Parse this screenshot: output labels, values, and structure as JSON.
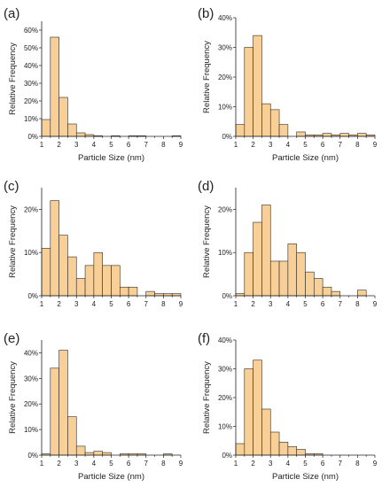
{
  "chart_data": [
    {
      "type": "bar",
      "panel_label": "(a)",
      "xlabel": "Particle Size (nm)",
      "ylabel": "Relative Frequency",
      "xlim": [
        1,
        9
      ],
      "ylim": [
        0,
        65
      ],
      "xticks": [
        "1",
        "2",
        "3",
        "4",
        "5",
        "6",
        "7",
        "8",
        "9"
      ],
      "yticks": [
        "0%",
        "10%",
        "20%",
        "30%",
        "40%",
        "50%",
        "60%"
      ],
      "bin_width": 0.5,
      "x": [
        1.0,
        1.5,
        2.0,
        2.5,
        3.0,
        3.5,
        4.0,
        4.5,
        5.0,
        5.5,
        6.0,
        6.5,
        7.0,
        7.5,
        8.0,
        8.5
      ],
      "values": [
        9.5,
        56,
        22,
        7,
        2,
        1,
        0.3,
        0,
        0.3,
        0,
        0.3,
        0.3,
        0,
        0,
        0,
        0.3
      ]
    },
    {
      "type": "bar",
      "panel_label": "(b)",
      "xlabel": "Particle Size (nm)",
      "ylabel": "Relative Frequency",
      "xlim": [
        1,
        9
      ],
      "ylim": [
        0,
        40
      ],
      "xticks": [
        "1",
        "2",
        "3",
        "4",
        "5",
        "6",
        "7",
        "8",
        "9"
      ],
      "yticks": [
        "0%",
        "10%",
        "20%",
        "30%",
        "40%"
      ],
      "bin_width": 0.5,
      "x": [
        1.0,
        1.5,
        2.0,
        2.5,
        3.0,
        3.5,
        4.0,
        4.5,
        5.0,
        5.5,
        6.0,
        6.5,
        7.0,
        7.5,
        8.0,
        8.5
      ],
      "values": [
        4,
        30,
        34,
        11,
        9,
        4,
        0,
        1.5,
        0.5,
        0.5,
        1,
        0.5,
        1,
        0.5,
        1,
        0.5
      ]
    },
    {
      "type": "bar",
      "panel_label": "(c)",
      "xlabel": "",
      "ylabel": "Relative Frequency",
      "xlim": [
        1,
        9
      ],
      "ylim": [
        0,
        25
      ],
      "xticks": [
        "1",
        "2",
        "3",
        "4",
        "5",
        "6",
        "7",
        "8",
        "9"
      ],
      "yticks": [
        "0%",
        "10%",
        "20%"
      ],
      "bin_width": 0.5,
      "x": [
        1.0,
        1.5,
        2.0,
        2.5,
        3.0,
        3.5,
        4.0,
        4.5,
        5.0,
        5.5,
        6.0,
        6.5,
        7.0,
        7.5,
        8.0,
        8.5
      ],
      "values": [
        11,
        22,
        14,
        9,
        4,
        7,
        10,
        7,
        7,
        2,
        2,
        0,
        1,
        0.5,
        0.5,
        0.5
      ]
    },
    {
      "type": "bar",
      "panel_label": "(d)",
      "xlabel": "",
      "ylabel": "Relative Frequency",
      "xlim": [
        1,
        9
      ],
      "ylim": [
        0,
        25
      ],
      "xticks": [
        "1",
        "2",
        "3",
        "4",
        "5",
        "6",
        "7",
        "8",
        "9"
      ],
      "yticks": [
        "0%",
        "10%",
        "20%"
      ],
      "bin_width": 0.5,
      "x": [
        1.0,
        1.5,
        2.0,
        2.5,
        3.0,
        3.5,
        4.0,
        4.5,
        5.0,
        5.5,
        6.0,
        6.5,
        7.0,
        7.5,
        8.0,
        8.5
      ],
      "values": [
        0.5,
        10,
        17,
        21,
        8,
        8,
        12,
        10,
        5.5,
        4,
        2,
        1,
        0,
        0,
        1.3,
        0
      ]
    },
    {
      "type": "bar",
      "panel_label": "(e)",
      "xlabel": "Particle Size (nm)",
      "ylabel": "Relative Frequency",
      "xlim": [
        1,
        9
      ],
      "ylim": [
        0,
        45
      ],
      "xticks": [
        "1",
        "2",
        "3",
        "4",
        "5",
        "6",
        "7",
        "8",
        "9"
      ],
      "yticks": [
        "0%",
        "10%",
        "20%",
        "30%",
        "40%"
      ],
      "bin_width": 0.5,
      "x": [
        1.0,
        1.5,
        2.0,
        2.5,
        3.0,
        3.5,
        4.0,
        4.5,
        5.0,
        5.5,
        6.0,
        6.5,
        7.0,
        7.5,
        8.0,
        8.5
      ],
      "values": [
        0.5,
        34,
        41,
        15,
        3.5,
        1,
        1.5,
        1,
        0,
        0.5,
        0.5,
        0.5,
        0,
        0,
        0.5,
        0
      ]
    },
    {
      "type": "bar",
      "panel_label": "(f)",
      "xlabel": "Particle Size (nm)",
      "ylabel": "Relative Frequency",
      "xlim": [
        1,
        9
      ],
      "ylim": [
        0,
        40
      ],
      "xticks": [
        "1",
        "2",
        "3",
        "4",
        "5",
        "6",
        "7",
        "8",
        "9"
      ],
      "yticks": [
        "0%",
        "10%",
        "20%",
        "30%",
        "40%"
      ],
      "bin_width": 0.5,
      "x": [
        1.0,
        1.5,
        2.0,
        2.5,
        3.0,
        3.5,
        4.0,
        4.5,
        5.0,
        5.5,
        6.0,
        6.5,
        7.0,
        7.5,
        8.0,
        8.5
      ],
      "values": [
        4,
        30,
        33,
        16,
        8,
        4.5,
        3,
        2,
        0.5,
        0.5,
        0,
        0,
        0,
        0,
        0,
        0
      ]
    }
  ],
  "colors": {
    "bar_fill": "#f8cf97",
    "bar_stroke": "#2a2a2a"
  }
}
